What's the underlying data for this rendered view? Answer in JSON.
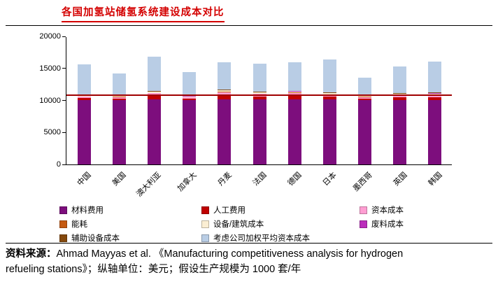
{
  "title": "各国加氢站储氢系统建设成本对比",
  "source": {
    "label": "资料来源：",
    "line1_rest": "Ahmad Mayyas et al. 《Manufacturing competitiveness analysis for hydrogen",
    "line2": "refueling stations》；纵轴单位：美元；假设生产规模为 1000 套/年"
  },
  "chart_data": {
    "type": "bar",
    "stacked": true,
    "title": "各国加氢站储氢系统建设成本对比",
    "ylabel_unit": "美元",
    "ylim": [
      0,
      20000
    ],
    "yticks": [
      0,
      5000,
      10000,
      15000,
      20000
    ],
    "grid": false,
    "legend_position": "bottom",
    "reference_line": {
      "value": 10800,
      "color": "#A00000"
    },
    "categories": [
      "中国",
      "美国",
      "澳大利亚",
      "加拿大",
      "丹麦",
      "法国",
      "德国",
      "日本",
      "墨西哥",
      "英国",
      "韩国"
    ],
    "series": [
      {
        "name": "材料费用",
        "color": "#7D0E7D",
        "values": [
          10000,
          10000,
          10200,
          10000,
          10200,
          10200,
          10200,
          10200,
          10000,
          10100,
          10000
        ]
      },
      {
        "name": "人工费用",
        "color": "#C00000",
        "values": [
          350,
          300,
          500,
          300,
          600,
          450,
          500,
          400,
          300,
          400,
          450
        ]
      },
      {
        "name": "资本成本",
        "color": "#FF9ED2",
        "values": [
          200,
          200,
          400,
          150,
          500,
          350,
          450,
          300,
          200,
          300,
          400
        ]
      },
      {
        "name": "能耗",
        "color": "#C55A11",
        "values": [
          50,
          50,
          60,
          50,
          60,
          60,
          60,
          60,
          50,
          50,
          60
        ]
      },
      {
        "name": "设备/建筑成本",
        "color": "#FBEED3",
        "values": [
          120,
          120,
          180,
          120,
          180,
          160,
          180,
          160,
          120,
          150,
          180
        ]
      },
      {
        "name": "废料成本",
        "color": "#BB2DBB",
        "values": [
          40,
          40,
          60,
          40,
          60,
          50,
          60,
          50,
          40,
          50,
          60
        ]
      },
      {
        "name": "辅助设备成本",
        "color": "#84490D",
        "values": [
          40,
          40,
          60,
          40,
          60,
          50,
          60,
          50,
          40,
          50,
          60
        ]
      },
      {
        "name": "考虑公司加权平均资本成本",
        "color": "#B9CDE5",
        "values": [
          4800,
          3450,
          5340,
          3700,
          4340,
          4430,
          4490,
          5180,
          2850,
          4200,
          4890
        ]
      }
    ],
    "totals": [
      15600,
      14200,
      16800,
      14400,
      16000,
      15750,
      16000,
      16400,
      13600,
      15300,
      16100
    ]
  }
}
